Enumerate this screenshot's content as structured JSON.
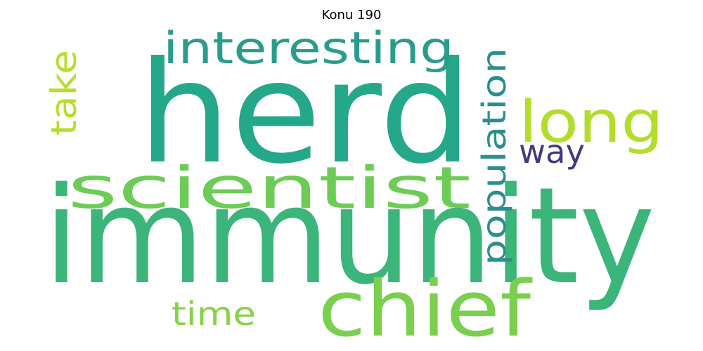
{
  "title": "Konu 190",
  "words": [
    {
      "text": "immunity",
      "color": "#3bb57a"
    },
    {
      "text": "herd",
      "color": "#25a889"
    },
    {
      "text": "chief",
      "color": "#7bcf4e"
    },
    {
      "text": "scientist",
      "color": "#6ccc56"
    },
    {
      "text": "interesting",
      "color": "#2a9c8b"
    },
    {
      "text": "long",
      "color": "#b3dd2b"
    },
    {
      "text": "population",
      "color": "#2b8f8c"
    },
    {
      "text": "take",
      "color": "#b6de2b"
    },
    {
      "text": "way",
      "color": "#453781"
    },
    {
      "text": "time",
      "color": "#86d249"
    }
  ]
}
